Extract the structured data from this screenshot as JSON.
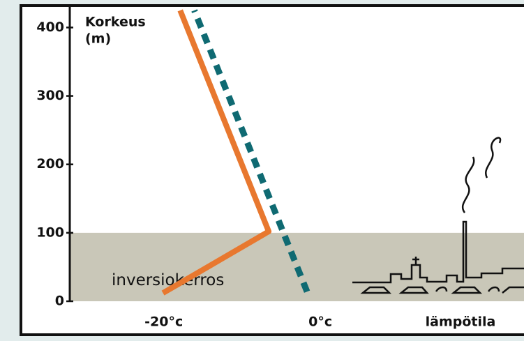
{
  "chart_data": {
    "type": "line",
    "ylabel": [
      "Korkeus",
      "(m)"
    ],
    "xlabel": "lämpötila",
    "xlim": [
      -32,
      26
    ],
    "xticks": [
      {
        "value": -20,
        "label": "-20°c"
      },
      {
        "value": 0,
        "label": "0°c"
      }
    ],
    "ylim": [
      0,
      430
    ],
    "yticks": [
      0,
      100,
      200,
      300,
      400
    ],
    "band": {
      "label": "inversiokerros",
      "range": [
        0,
        100
      ],
      "color": "#c9c7b8"
    },
    "series": [
      {
        "color": "#e8782f",
        "dashed": false,
        "x": [
          -20.1,
          -6.6,
          -17.9
        ],
        "values": [
          12,
          102,
          425
        ]
      },
      {
        "color": "#0f6a72",
        "dashed": true,
        "x": [
          -1.7,
          -16.1
        ],
        "values": [
          14,
          425
        ]
      }
    ]
  }
}
